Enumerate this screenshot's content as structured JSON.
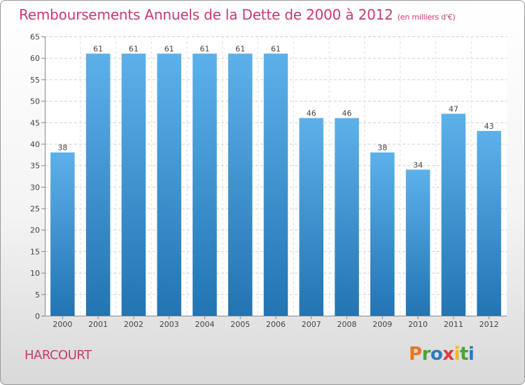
{
  "title": "Remboursements Annuels de la Dette de 2000 à 2012",
  "unit": "(en milliers d'€)",
  "city": "HARCOURT",
  "logo": {
    "letters": [
      "P",
      "r",
      "o",
      "x",
      "i",
      "t",
      "i"
    ],
    "colors": [
      "#e8771d",
      "#4aa33b",
      "#2a7bc0",
      "#e03a3a",
      "#f2b81c",
      "#4aa33b",
      "#2a7bc0"
    ]
  },
  "colors": {
    "title": "#c83a73",
    "bar_top": "#5db1ea",
    "bar_bottom": "#2274b3"
  },
  "chart_data": {
    "type": "bar",
    "categories": [
      "2000",
      "2001",
      "2002",
      "2003",
      "2004",
      "2005",
      "2006",
      "2007",
      "2008",
      "2009",
      "2010",
      "2011",
      "2012"
    ],
    "values": [
      38,
      61,
      61,
      61,
      61,
      61,
      61,
      46,
      46,
      38,
      34,
      47,
      43
    ],
    "yticks": [
      0,
      5,
      10,
      15,
      20,
      25,
      30,
      35,
      40,
      45,
      50,
      55,
      60,
      65
    ],
    "ylim": [
      0,
      65
    ],
    "grid": true,
    "data_labels": true
  }
}
